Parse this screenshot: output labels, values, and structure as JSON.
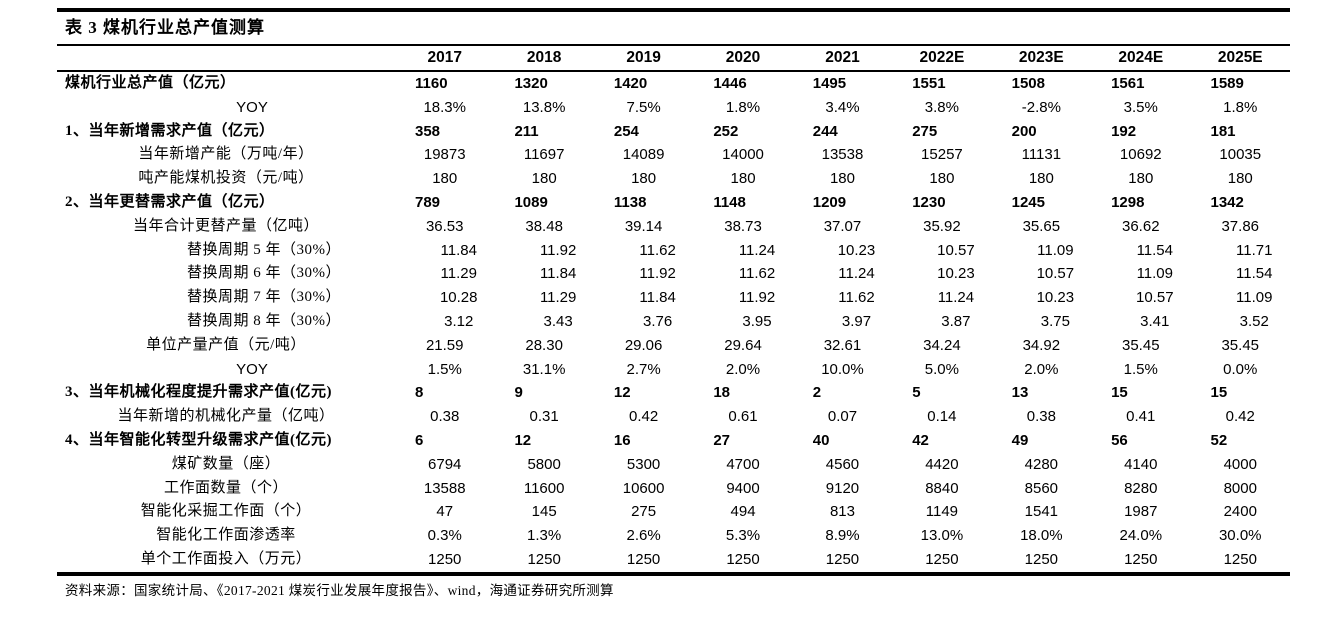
{
  "title": "表 3 煤机行业总产值测算",
  "table": {
    "columns": [
      "2017",
      "2018",
      "2019",
      "2020",
      "2021",
      "2022E",
      "2023E",
      "2024E",
      "2025E"
    ],
    "rows": [
      {
        "label": "煤机行业总产值（亿元）",
        "type": "section",
        "values": [
          "1160",
          "1320",
          "1420",
          "1446",
          "1495",
          "1551",
          "1508",
          "1561",
          "1589"
        ]
      },
      {
        "label": "YOY",
        "type": "sub-yoy",
        "values": [
          "18.3%",
          "13.8%",
          "7.5%",
          "1.8%",
          "3.4%",
          "3.8%",
          "-2.8%",
          "3.5%",
          "1.8%"
        ]
      },
      {
        "label": "1、当年新增需求产值（亿元）",
        "type": "section",
        "values": [
          "358",
          "211",
          "254",
          "252",
          "244",
          "275",
          "200",
          "192",
          "181"
        ]
      },
      {
        "label": "当年新增产能（万吨/年）",
        "type": "sub",
        "values": [
          "19873",
          "11697",
          "14089",
          "14000",
          "13538",
          "15257",
          "11131",
          "10692",
          "10035"
        ]
      },
      {
        "label": "吨产能煤机投资（元/吨）",
        "type": "sub",
        "values": [
          "180",
          "180",
          "180",
          "180",
          "180",
          "180",
          "180",
          "180",
          "180"
        ]
      },
      {
        "label": "2、当年更替需求产值（亿元）",
        "type": "section",
        "values": [
          "789",
          "1089",
          "1138",
          "1148",
          "1209",
          "1230",
          "1245",
          "1298",
          "1342"
        ]
      },
      {
        "label": "当年合计更替产量（亿吨）",
        "type": "sub",
        "values": [
          "36.53",
          "38.48",
          "39.14",
          "38.73",
          "37.07",
          "35.92",
          "35.65",
          "36.62",
          "37.86"
        ]
      },
      {
        "label": "替换周期 5 年（30%）",
        "type": "sub-indent",
        "values": [
          "11.84",
          "11.92",
          "11.62",
          "11.24",
          "10.23",
          "10.57",
          "11.09",
          "11.54",
          "11.71"
        ]
      },
      {
        "label": "替换周期 6 年（30%）",
        "type": "sub-indent",
        "values": [
          "11.29",
          "11.84",
          "11.92",
          "11.62",
          "11.24",
          "10.23",
          "10.57",
          "11.09",
          "11.54"
        ]
      },
      {
        "label": "替换周期 7 年（30%）",
        "type": "sub-indent",
        "values": [
          "10.28",
          "11.29",
          "11.84",
          "11.92",
          "11.62",
          "11.24",
          "10.23",
          "10.57",
          "11.09"
        ]
      },
      {
        "label": "替换周期 8 年（30%）",
        "type": "sub-indent",
        "values": [
          "3.12",
          "3.43",
          "3.76",
          "3.95",
          "3.97",
          "3.87",
          "3.75",
          "3.41",
          "3.52"
        ]
      },
      {
        "label": "单位产量产值（元/吨）",
        "type": "sub",
        "values": [
          "21.59",
          "28.30",
          "29.06",
          "29.64",
          "32.61",
          "34.24",
          "34.92",
          "35.45",
          "35.45"
        ]
      },
      {
        "label": "YOY",
        "type": "sub-yoy",
        "values": [
          "1.5%",
          "31.1%",
          "2.7%",
          "2.0%",
          "10.0%",
          "5.0%",
          "2.0%",
          "1.5%",
          "0.0%"
        ]
      },
      {
        "label": "3、当年机械化程度提升需求产值(亿元)",
        "type": "section",
        "values": [
          "8",
          "9",
          "12",
          "18",
          "2",
          "5",
          "13",
          "15",
          "15"
        ]
      },
      {
        "label": "当年新增的机械化产量（亿吨）",
        "type": "sub",
        "values": [
          "0.38",
          "0.31",
          "0.42",
          "0.61",
          "0.07",
          "0.14",
          "0.38",
          "0.41",
          "0.42"
        ]
      },
      {
        "label": "4、当年智能化转型升级需求产值(亿元)",
        "type": "section",
        "values": [
          "6",
          "12",
          "16",
          "27",
          "40",
          "42",
          "49",
          "56",
          "52"
        ]
      },
      {
        "label": "煤矿数量（座）",
        "type": "sub",
        "values": [
          "6794",
          "5800",
          "5300",
          "4700",
          "4560",
          "4420",
          "4280",
          "4140",
          "4000"
        ]
      },
      {
        "label": "工作面数量（个）",
        "type": "sub",
        "values": [
          "13588",
          "11600",
          "10600",
          "9400",
          "9120",
          "8840",
          "8560",
          "8280",
          "8000"
        ]
      },
      {
        "label": "智能化采掘工作面（个）",
        "type": "sub",
        "values": [
          "47",
          "145",
          "275",
          "494",
          "813",
          "1149",
          "1541",
          "1987",
          "2400"
        ]
      },
      {
        "label": "智能化工作面渗透率",
        "type": "sub",
        "values": [
          "0.3%",
          "1.3%",
          "2.6%",
          "5.3%",
          "8.9%",
          "13.0%",
          "18.0%",
          "24.0%",
          "30.0%"
        ]
      },
      {
        "label": "单个工作面投入（万元）",
        "type": "sub",
        "values": [
          "1250",
          "1250",
          "1250",
          "1250",
          "1250",
          "1250",
          "1250",
          "1250",
          "1250"
        ]
      }
    ]
  },
  "source": "资料来源：国家统计局、《2017-2021 煤炭行业发展年度报告》、wind，海通证券研究所测算",
  "colors": {
    "text": "#000000",
    "background": "#ffffff",
    "rule": "#000000"
  }
}
